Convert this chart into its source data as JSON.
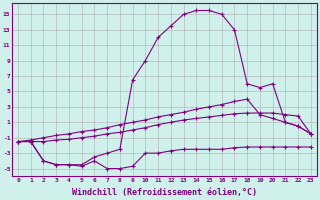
{
  "background_color": "#cff0eb",
  "grid_color": "#b0b0b0",
  "line_color": "#800080",
  "marker": "+",
  "xlabel": "Windchill (Refroidissement éolien,°C)",
  "xlabel_fontsize": 6,
  "yticks": [
    -5,
    -3,
    -1,
    1,
    3,
    5,
    7,
    9,
    11,
    13,
    15
  ],
  "xticks": [
    0,
    1,
    2,
    3,
    4,
    5,
    6,
    7,
    8,
    9,
    10,
    11,
    12,
    13,
    14,
    15,
    16,
    17,
    18,
    19,
    20,
    21,
    22,
    23
  ],
  "xlim": [
    -0.5,
    23.5
  ],
  "ylim": [
    -6,
    16.5
  ],
  "series": [
    {
      "x": [
        0,
        1,
        2,
        3,
        4,
        5,
        6,
        7,
        8,
        9,
        10,
        11,
        12,
        13,
        14,
        15,
        16,
        17,
        18,
        19,
        20,
        21,
        22,
        23
      ],
      "y": [
        -1.5,
        -1.5,
        -4.0,
        -4.5,
        -4.5,
        -4.7,
        -4.0,
        -5.0,
        -5.0,
        -4.7,
        -3.0,
        -3.0,
        -2.7,
        -2.5,
        -2.5,
        -2.5,
        -2.5,
        -2.3,
        -2.2,
        -2.2,
        -2.2,
        -2.2,
        -2.2,
        -2.2
      ]
    },
    {
      "x": [
        0,
        1,
        2,
        3,
        4,
        5,
        6,
        7,
        8,
        9,
        10,
        11,
        12,
        13,
        14,
        15,
        16,
        17,
        18,
        19,
        20,
        21,
        22,
        23
      ],
      "y": [
        -1.5,
        -1.5,
        -1.5,
        -1.3,
        -1.2,
        -1.0,
        -0.8,
        -0.5,
        -0.3,
        0.0,
        0.3,
        0.7,
        1.0,
        1.3,
        1.5,
        1.7,
        1.9,
        2.1,
        2.2,
        2.2,
        2.2,
        2.0,
        1.8,
        -0.5
      ]
    },
    {
      "x": [
        0,
        1,
        2,
        3,
        4,
        5,
        6,
        7,
        8,
        9,
        10,
        11,
        12,
        13,
        14,
        15,
        16,
        17,
        18,
        19,
        20,
        21,
        22,
        23
      ],
      "y": [
        -1.5,
        -1.3,
        -1.0,
        -0.7,
        -0.5,
        -0.2,
        0.0,
        0.3,
        0.7,
        1.0,
        1.3,
        1.7,
        2.0,
        2.3,
        2.7,
        3.0,
        3.3,
        3.7,
        4.0,
        2.0,
        1.5,
        1.0,
        0.5,
        -0.5
      ]
    },
    {
      "x": [
        1,
        2,
        3,
        4,
        5,
        6,
        7,
        8,
        9,
        10,
        11,
        12,
        13,
        14,
        15,
        16,
        17,
        18,
        19,
        20,
        21,
        22,
        23
      ],
      "y": [
        -1.5,
        -4.0,
        -4.5,
        -4.5,
        -4.5,
        -3.5,
        -3.0,
        -2.5,
        6.5,
        9.0,
        12.0,
        13.5,
        15.0,
        15.5,
        15.5,
        15.0,
        13.0,
        6.0,
        5.5,
        6.0,
        1.0,
        0.5,
        -0.5
      ]
    }
  ]
}
